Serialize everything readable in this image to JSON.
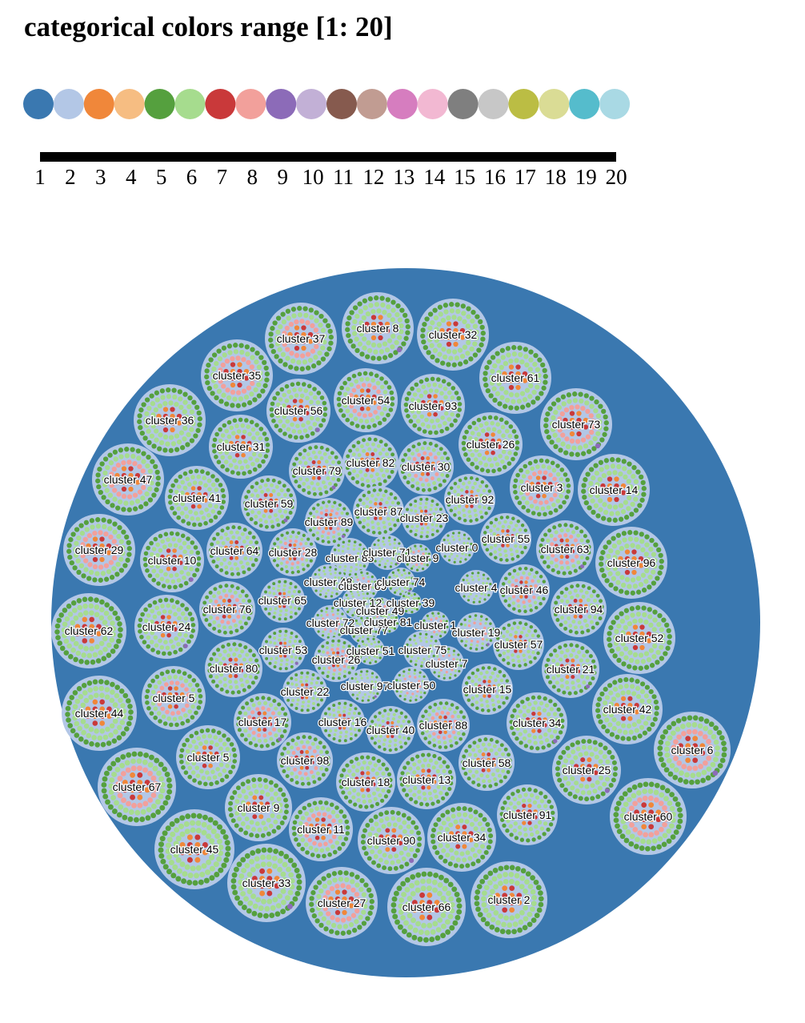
{
  "title": "categorical colors range [1: 20]",
  "palette": [
    "#3a78b0",
    "#b3c7e6",
    "#f0873a",
    "#f6bd82",
    "#55a03e",
    "#a6dc8e",
    "#c9393a",
    "#f2a09b",
    "#8c6bb8",
    "#c2b0d6",
    "#865a4e",
    "#c19c92",
    "#d67dbf",
    "#f2b8d2",
    "#7f7f7f",
    "#c7c7c7",
    "#bbbd44",
    "#dadc95",
    "#55bccc",
    "#a9d9e4"
  ],
  "scale": {
    "ticks": [
      "1",
      "2",
      "3",
      "4",
      "5",
      "6",
      "7",
      "8",
      "9",
      "10",
      "11",
      "12",
      "13",
      "14",
      "15",
      "16",
      "17",
      "18",
      "19",
      "20"
    ]
  },
  "colors": {
    "root": "#3a78b0",
    "cluster_fill": "#b3c7e6",
    "ring_outer": "#55a03e",
    "ring_middle": "#a6dc8e",
    "ring_pink": "#f2a09b",
    "core_red": "#c9393a",
    "core_orange": "#f0873a",
    "accent_purple": "#8c6bb8"
  },
  "clusters": [
    "cluster 37",
    "cluster 8",
    "cluster 32",
    "cluster 35",
    "cluster 61",
    "cluster 56",
    "cluster 54",
    "cluster 93",
    "cluster 36",
    "cluster 73",
    "cluster 31",
    "cluster 26",
    "cluster 47",
    "cluster 79",
    "cluster 82",
    "cluster 30",
    "cluster 41",
    "cluster 59",
    "cluster 3",
    "cluster 14",
    "cluster 87",
    "cluster 89",
    "cluster 23",
    "cluster 92",
    "cluster 29",
    "cluster 10",
    "cluster 64",
    "cluster 28",
    "cluster 85",
    "cluster 71",
    "cluster 9",
    "cluster 0",
    "cluster 55",
    "cluster 63",
    "cluster 96",
    "cluster 48",
    "cluster 69",
    "cluster 74",
    "cluster 4",
    "cluster 46",
    "cluster 62",
    "cluster 24",
    "cluster 76",
    "cluster 65",
    "cluster 12",
    "cluster 49",
    "cluster 39",
    "cluster 94",
    "cluster 72",
    "cluster 77",
    "cluster 81",
    "cluster 1",
    "cluster 52",
    "cluster 53",
    "cluster 26",
    "cluster 51",
    "cluster 75",
    "cluster 19",
    "cluster 57",
    "cluster 80",
    "cluster 7",
    "cluster 21",
    "cluster 44",
    "cluster 5",
    "cluster 22",
    "cluster 97",
    "cluster 50",
    "cluster 15",
    "cluster 42",
    "cluster 17",
    "cluster 16",
    "cluster 40",
    "cluster 88",
    "cluster 34",
    "cluster 5",
    "cluster 98",
    "cluster 58",
    "cluster 25",
    "cluster 67",
    "cluster 18",
    "cluster 13",
    "cluster 6",
    "cluster 9",
    "cluster 91",
    "cluster 11",
    "cluster 90",
    "cluster 34",
    "cluster 60",
    "cluster 45",
    "cluster 33",
    "cluster 27",
    "cluster 66",
    "cluster 2"
  ]
}
